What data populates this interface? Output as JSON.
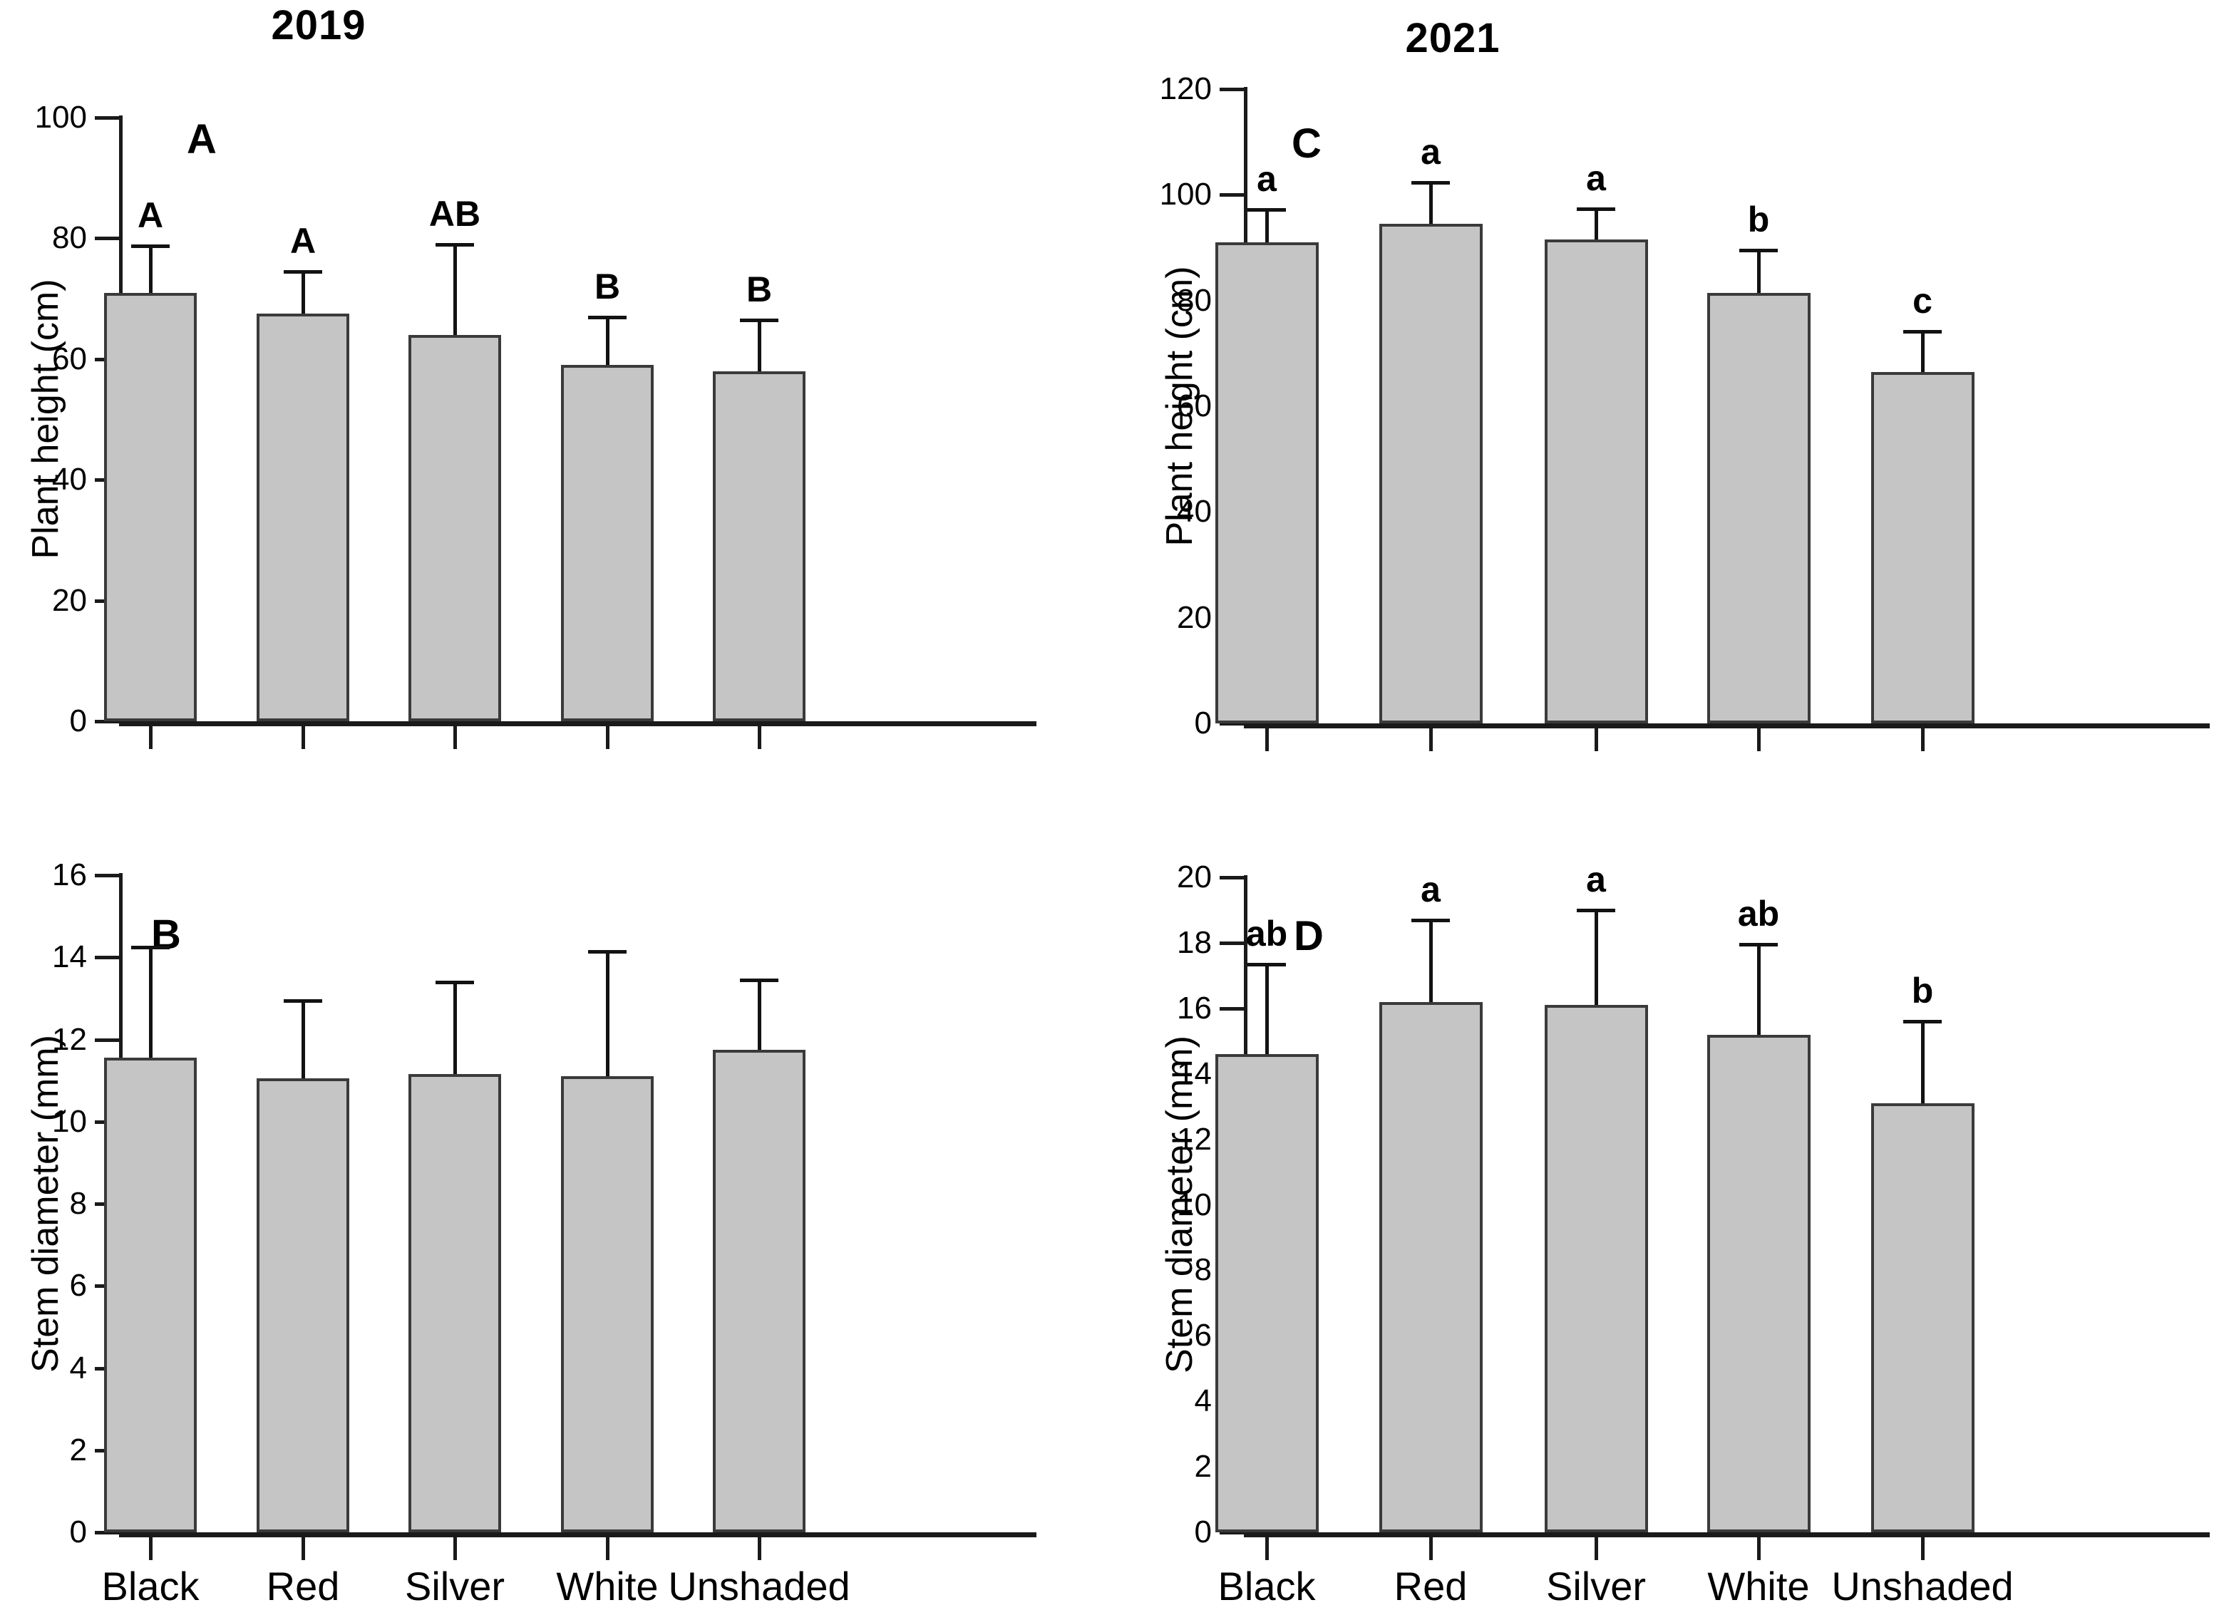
{
  "figure": {
    "columns": [
      {
        "title": "2019"
      },
      {
        "title": "2021"
      }
    ],
    "x_categories": [
      "Black",
      "Red",
      "Silver",
      "White",
      "Unshaded"
    ],
    "colors": {
      "background": "#ffffff",
      "bar_fill": "#c5c5c5",
      "bar_border": "#3a3a3a",
      "axis": "#1a1a1a",
      "error_bar": "#121212",
      "text": "#000000"
    }
  },
  "chart_data": [
    {
      "type": "bar",
      "panel_label": "A",
      "column_title": "2019",
      "ylabel": "Plant height (cm)",
      "xlabel": "",
      "ylim": [
        0,
        100
      ],
      "ytick_step": 20,
      "grid": false,
      "legend": null,
      "categories": [
        "Black",
        "Red",
        "Silver",
        "White",
        "Unshaded"
      ],
      "values": [
        71,
        67.5,
        64,
        59,
        58
      ],
      "errors_plus": [
        7.8,
        7,
        15,
        8,
        8.5
      ],
      "sig_letters": [
        "A",
        "A",
        "AB",
        "B",
        "B"
      ],
      "show_x_tick_labels": false
    },
    {
      "type": "bar",
      "panel_label": "B",
      "column_title": "",
      "ylabel": "Stem diameter (mm)",
      "xlabel": "",
      "ylim": [
        0,
        16
      ],
      "ytick_step": 2,
      "grid": false,
      "legend": null,
      "categories": [
        "Black",
        "Red",
        "Silver",
        "White",
        "Unshaded"
      ],
      "values": [
        11.55,
        11.05,
        11.15,
        11.1,
        11.75
      ],
      "errors_plus": [
        2.7,
        1.9,
        2.25,
        3.05,
        1.7
      ],
      "sig_letters": [
        "",
        "",
        "",
        "",
        ""
      ],
      "show_x_tick_labels": true
    },
    {
      "type": "bar",
      "panel_label": "C",
      "column_title": "2021",
      "ylabel": "Plant height (cm)",
      "xlabel": "",
      "ylim": [
        0,
        120
      ],
      "ytick_step": 20,
      "grid": false,
      "legend": null,
      "categories": [
        "Black",
        "Red",
        "Silver",
        "White",
        "Unshaded"
      ],
      "values": [
        91,
        94.5,
        91.5,
        81.5,
        66.5
      ],
      "errors_plus": [
        6.2,
        7.8,
        5.8,
        8,
        7.6
      ],
      "sig_letters": [
        "a",
        "a",
        "a",
        "b",
        "c"
      ],
      "show_x_tick_labels": false
    },
    {
      "type": "bar",
      "panel_label": "D",
      "column_title": "",
      "ylabel": "Stem diameter (mm)",
      "xlabel": "",
      "ylim": [
        0,
        20
      ],
      "ytick_step": 2,
      "grid": false,
      "legend": null,
      "categories": [
        "Black",
        "Red",
        "Silver",
        "White",
        "Unshaded"
      ],
      "values": [
        14.6,
        16.2,
        16.1,
        15.2,
        13.1
      ],
      "errors_plus": [
        2.75,
        2.5,
        2.9,
        2.75,
        2.5
      ],
      "sig_letters": [
        "ab",
        "a",
        "a",
        "ab",
        "b"
      ],
      "show_x_tick_labels": true
    }
  ]
}
